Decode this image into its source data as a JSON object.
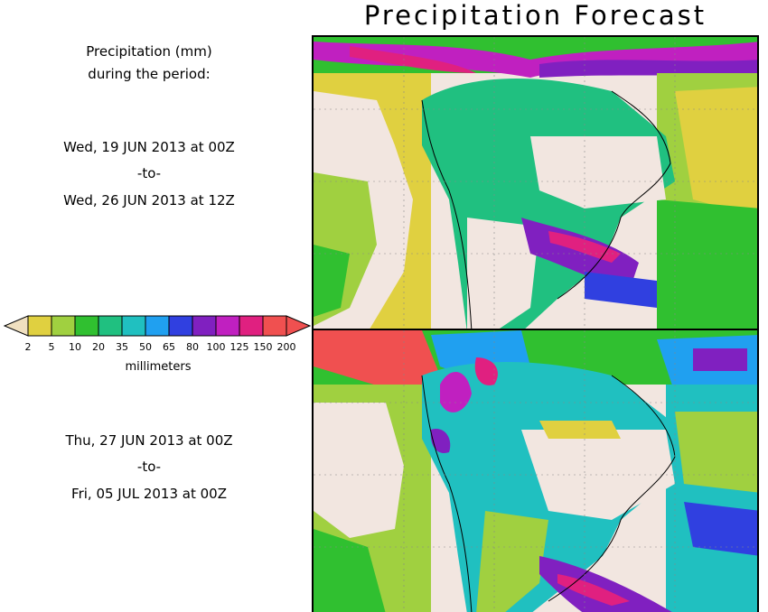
{
  "title": "Precipitation Forecast",
  "header": {
    "line1": "Precipitation (mm)",
    "line2": "during the period:"
  },
  "period1": {
    "start": "Wed, 19 JUN 2013 at 00Z",
    "to": "-to-",
    "end": "Wed, 26 JUN 2013 at 12Z"
  },
  "period2": {
    "start": "Thu, 27 JUN 2013 at 00Z",
    "to": "-to-",
    "end": "Fri, 05 JUL 2013 at 00Z"
  },
  "legend": {
    "units": "millimeters",
    "labels": [
      "2",
      "5",
      "10",
      "20",
      "35",
      "50",
      "65",
      "80",
      "100",
      "125",
      "150",
      "200"
    ],
    "colors": [
      "#e0d040",
      "#a0d040",
      "#30c030",
      "#20c080",
      "#20c0c0",
      "#20a0f0",
      "#3040e0",
      "#8020c0",
      "#c020c0",
      "#e02080",
      "#f05050"
    ],
    "low_color": "#f0e0c0",
    "high_color": "#f05050"
  }
}
